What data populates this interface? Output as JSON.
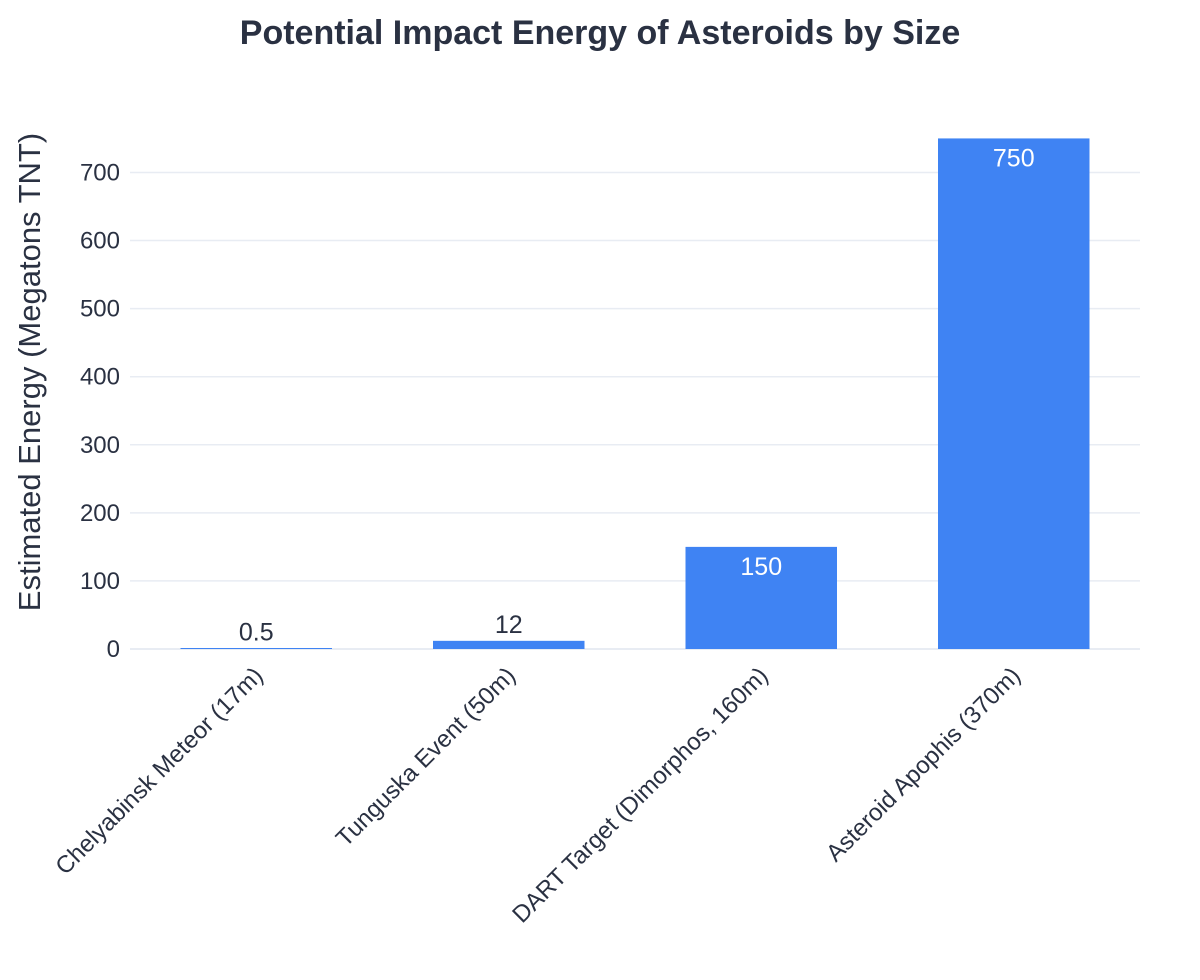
{
  "chart_data": {
    "type": "bar",
    "title": "Potential Impact Energy of Asteroids by Size",
    "xlabel": "",
    "ylabel": "Estimated Energy (Megatons TNT)",
    "categories": [
      "Chelyabinsk Meteor (17m)",
      "Tunguska Event (50m)",
      "DART Target (Dimorphos, 160m)",
      "Asteroid Apophis (370m)"
    ],
    "values": [
      0.5,
      12,
      150,
      750
    ],
    "data_labels": [
      "0.5",
      "12",
      "150",
      "750"
    ],
    "ylim": [
      0,
      780
    ],
    "yticks": [
      0,
      100,
      200,
      300,
      400,
      500,
      600,
      700
    ],
    "grid": true,
    "legend": "none",
    "bar_color": "#3f83f3",
    "text_color": "#2a3142",
    "grid_color": "#e8ecf3"
  }
}
